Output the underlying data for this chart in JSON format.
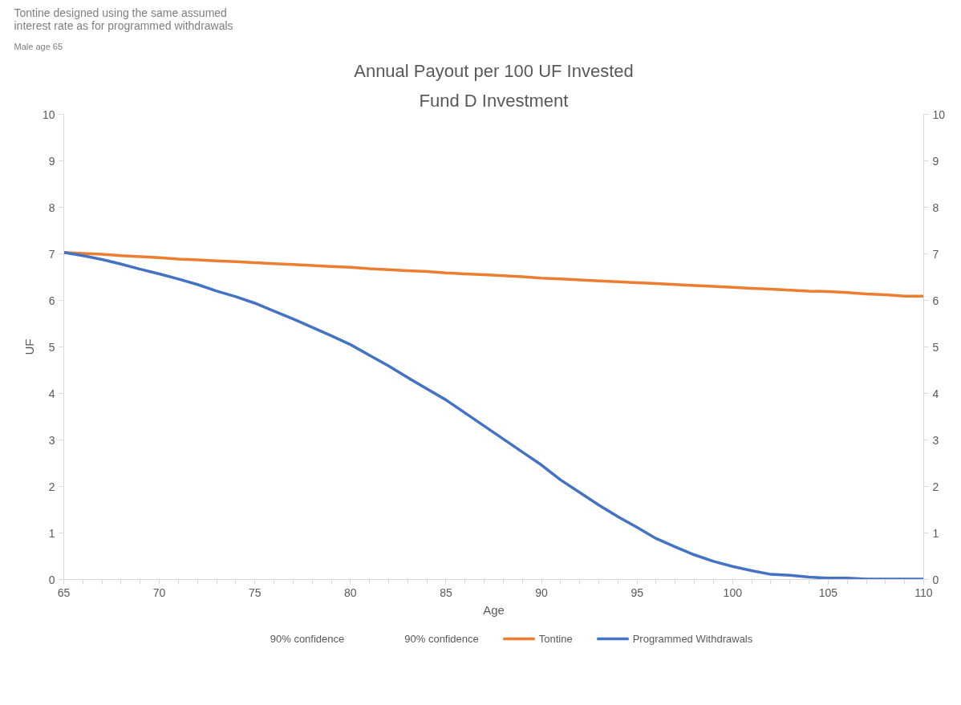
{
  "chart_data": {
    "type": "line",
    "title": "Annual Payout per 100 UF Invested",
    "subtitle": "Fund D Investment",
    "xlabel": "Age",
    "ylabel": "UF",
    "annotations": [
      "Tontine designed using the same assumed interest rate as for programmed withdrawals",
      "Male age 65",
      "90% confidence",
      "90% confidence"
    ],
    "x": [
      65,
      66,
      67,
      68,
      69,
      70,
      71,
      72,
      73,
      74,
      75,
      76,
      77,
      78,
      79,
      80,
      81,
      82,
      83,
      84,
      85,
      86,
      87,
      88,
      89,
      90,
      91,
      92,
      93,
      94,
      95,
      96,
      97,
      98,
      99,
      100,
      101,
      102,
      103,
      104,
      105,
      106,
      107,
      108,
      109,
      110
    ],
    "series": [
      {
        "name": "Tontine",
        "color": "#ed7d31",
        "values": [
          7.03,
          7.01,
          6.99,
          6.96,
          6.94,
          6.92,
          6.89,
          6.87,
          6.85,
          6.83,
          6.81,
          6.79,
          6.77,
          6.75,
          6.73,
          6.71,
          6.68,
          6.66,
          6.64,
          6.62,
          6.59,
          6.57,
          6.55,
          6.53,
          6.51,
          6.48,
          6.46,
          6.44,
          6.42,
          6.4,
          6.38,
          6.36,
          6.34,
          6.32,
          6.3,
          6.28,
          6.26,
          6.24,
          6.22,
          6.2,
          6.19,
          6.17,
          6.14,
          6.12,
          6.09,
          6.09
        ]
      },
      {
        "name": "Programmed Withdrawals",
        "color": "#4472c4",
        "values": [
          7.03,
          6.96,
          6.88,
          6.78,
          6.67,
          6.57,
          6.46,
          6.34,
          6.2,
          6.08,
          5.94,
          5.77,
          5.6,
          5.42,
          5.24,
          5.05,
          4.82,
          4.59,
          4.34,
          4.1,
          3.86,
          3.58,
          3.3,
          3.02,
          2.74,
          2.46,
          2.14,
          1.87,
          1.6,
          1.35,
          1.12,
          0.88,
          0.7,
          0.53,
          0.39,
          0.28,
          0.19,
          0.11,
          0.09,
          0.05,
          0.03,
          0.03,
          0.01,
          0.01,
          0.01,
          0.01
        ]
      }
    ],
    "xlim": [
      65,
      110
    ],
    "xticks": [
      65,
      {
        "value": 66,
        "label": null
      },
      {
        "value": 67,
        "label": null
      },
      {
        "value": 68,
        "label": null
      },
      {
        "value": 69,
        "label": null
      },
      70,
      {
        "value": 71,
        "label": null
      },
      {
        "value": 72,
        "label": null
      },
      {
        "value": 73,
        "label": null
      },
      {
        "value": 74,
        "label": null
      },
      75,
      {
        "value": 76,
        "label": null
      },
      {
        "value": 77,
        "label": null
      },
      {
        "value": 78,
        "label": null
      },
      {
        "value": 79,
        "label": null
      },
      80,
      {
        "value": 81,
        "label": null
      },
      {
        "value": 82,
        "label": null
      },
      {
        "value": 83,
        "label": null
      },
      {
        "value": 84,
        "label": null
      },
      85,
      {
        "value": 86,
        "label": null
      },
      {
        "value": 87,
        "label": null
      },
      {
        "value": 88,
        "label": null
      },
      {
        "value": 89,
        "label": null
      },
      90,
      {
        "value": 91,
        "label": null
      },
      {
        "value": 92,
        "label": null
      },
      {
        "value": 93,
        "label": null
      },
      {
        "value": 94,
        "label": null
      },
      95,
      {
        "value": 96,
        "label": null
      },
      {
        "value": 97,
        "label": null
      },
      {
        "value": 98,
        "label": null
      },
      {
        "value": 99,
        "label": null
      },
      100,
      {
        "value": 101,
        "label": null
      },
      {
        "value": 102,
        "label": null
      },
      {
        "value": 103,
        "label": null
      },
      {
        "value": 104,
        "label": null
      },
      105,
      {
        "value": 106,
        "label": null
      },
      {
        "value": 107,
        "label": null
      },
      {
        "value": 108,
        "label": null
      },
      {
        "value": 109,
        "label": null
      },
      110
    ],
    "ylim": [
      0,
      10
    ],
    "yticks": [
      0,
      1,
      2,
      3,
      4,
      5,
      6,
      7,
      8,
      9,
      10
    ],
    "y2lim": [
      0,
      10
    ],
    "y2ticks": [
      0,
      1,
      2,
      3,
      4,
      5,
      6,
      7,
      8,
      9,
      10
    ],
    "grid": false,
    "legend": "bottom",
    "marker": "none",
    "line_style": "solid"
  }
}
